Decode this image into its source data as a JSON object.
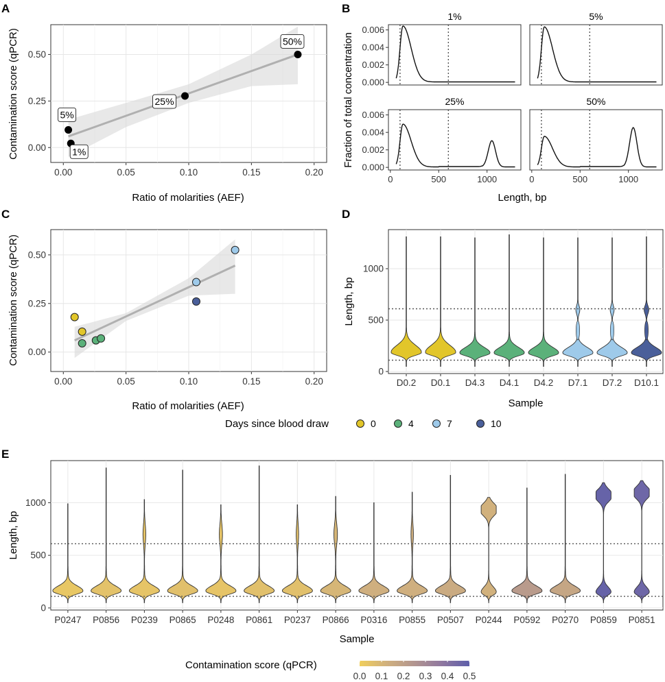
{
  "panels": {
    "A": {
      "label": "A",
      "chart_data": {
        "type": "scatter",
        "xlabel": "Ratio of molarities (AEF)",
        "ylabel": "Contamination score (qPCR)",
        "xlim": [
          -0.01,
          0.21
        ],
        "ylim": [
          -0.08,
          0.66
        ],
        "xticks": [
          0,
          0.05,
          0.1,
          0.15,
          0.2
        ],
        "xtick_labels": [
          "0.00",
          "0.05",
          "0.10",
          "0.15",
          "0.20"
        ],
        "yticks": [
          0,
          0.25,
          0.5
        ],
        "ytick_labels": [
          "0.00",
          "0.25",
          "0.50"
        ],
        "points": [
          {
            "x": 0.004,
            "y": 0.095,
            "label": "5%"
          },
          {
            "x": 0.006,
            "y": 0.022,
            "label": "1%"
          },
          {
            "x": 0.097,
            "y": 0.277,
            "label": "25%"
          },
          {
            "x": 0.187,
            "y": 0.5,
            "label": "50%"
          }
        ],
        "fit": {
          "x0": 0.004,
          "y0": 0.06,
          "x1": 0.187,
          "y1": 0.5
        },
        "band": {
          "upper": [
            [
              0.004,
              0.15
            ],
            [
              0.05,
              0.24
            ],
            [
              0.1,
              0.34
            ],
            [
              0.15,
              0.5
            ],
            [
              0.187,
              0.65
            ]
          ],
          "lower": [
            [
              0.187,
              0.34
            ],
            [
              0.15,
              0.33
            ],
            [
              0.1,
              0.24
            ],
            [
              0.05,
              0.11
            ],
            [
              0.004,
              -0.05
            ]
          ]
        }
      }
    },
    "B": {
      "label": "B",
      "chart_data": {
        "type": "line",
        "xlabel": "Length, bp",
        "ylabel": "Fraction of total concentration",
        "xlim": [
          -20,
          1350
        ],
        "ylim": [
          -0.0003,
          0.0066
        ],
        "xticks": [
          0,
          500,
          1000
        ],
        "xtick_labels": [
          "0",
          "500",
          "1000"
        ],
        "yticks": [
          0,
          0.002,
          0.004,
          0.006
        ],
        "ytick_labels": [
          "0.000",
          "0.002",
          "0.004",
          "0.006"
        ],
        "vlines": [
          100,
          600
        ],
        "facets": [
          {
            "title": "1%",
            "peak1": 0.0064,
            "peak2": 0
          },
          {
            "title": "5%",
            "peak1": 0.0063,
            "peak2": 0
          },
          {
            "title": "25%",
            "peak1": 0.0049,
            "peak2": 0.003
          },
          {
            "title": "50%",
            "peak1": 0.0035,
            "peak2": 0.0045
          }
        ]
      }
    },
    "C": {
      "label": "C",
      "chart_data": {
        "type": "scatter",
        "xlabel": "Ratio of molarities (AEF)",
        "ylabel": "Contamination score (qPCR)",
        "xlim": [
          -0.01,
          0.21
        ],
        "ylim": [
          -0.1,
          0.63
        ],
        "xticks": [
          0,
          0.05,
          0.1,
          0.15,
          0.2
        ],
        "xtick_labels": [
          "0.00",
          "0.05",
          "0.10",
          "0.15",
          "0.20"
        ],
        "yticks": [
          0,
          0.25,
          0.5
        ],
        "ytick_labels": [
          "0.00",
          "0.25",
          "0.50"
        ],
        "points": [
          {
            "x": 0.009,
            "y": 0.18,
            "day": 0
          },
          {
            "x": 0.015,
            "y": 0.105,
            "day": 0
          },
          {
            "x": 0.015,
            "y": 0.045,
            "day": 4
          },
          {
            "x": 0.026,
            "y": 0.06,
            "day": 4
          },
          {
            "x": 0.03,
            "y": 0.07,
            "day": 4
          },
          {
            "x": 0.106,
            "y": 0.36,
            "day": 7
          },
          {
            "x": 0.137,
            "y": 0.525,
            "day": 7
          },
          {
            "x": 0.106,
            "y": 0.26,
            "day": 10
          }
        ],
        "fit": {
          "x0": 0.009,
          "y0": 0.06,
          "x1": 0.137,
          "y1": 0.445
        },
        "band": {
          "upper": [
            [
              0.009,
              0.13
            ],
            [
              0.05,
              0.2
            ],
            [
              0.1,
              0.38
            ],
            [
              0.137,
              0.58
            ]
          ],
          "lower": [
            [
              0.137,
              0.3
            ],
            [
              0.1,
              0.29
            ],
            [
              0.05,
              0.16
            ],
            [
              0.009,
              -0.03
            ]
          ]
        }
      }
    },
    "D": {
      "label": "D",
      "chart_data": {
        "type": "violin",
        "xlabel": "Sample",
        "ylabel": "Length, bp",
        "ylim": [
          -20,
          1380
        ],
        "yticks": [
          0,
          500,
          1000
        ],
        "ytick_labels": [
          "0",
          "500",
          "1000"
        ],
        "hlines": [
          110,
          610
        ],
        "categories": [
          "D0.2",
          "D0.1",
          "D4.3",
          "D4.1",
          "D4.2",
          "D7.1",
          "D7.2",
          "D10.1"
        ],
        "days": [
          0,
          0,
          4,
          4,
          4,
          7,
          7,
          10
        ],
        "max_length": [
          1310,
          1310,
          1300,
          1330,
          1300,
          1300,
          1300,
          1310
        ],
        "second_mode": [
          0,
          0,
          0,
          0,
          0,
          0.5,
          0.5,
          0.6
        ]
      }
    },
    "legend_days": {
      "title": "Days since blood draw",
      "items": [
        {
          "label": "0",
          "color": "#E2C62A"
        },
        {
          "label": "4",
          "color": "#5BB17A"
        },
        {
          "label": "7",
          "color": "#9ECAEA"
        },
        {
          "label": "10",
          "color": "#4A5F9A"
        }
      ]
    },
    "E": {
      "label": "E",
      "chart_data": {
        "type": "violin",
        "xlabel": "Sample",
        "ylabel": "Length, bp",
        "ylim": [
          -20,
          1400
        ],
        "yticks": [
          0,
          500,
          1000
        ],
        "ytick_labels": [
          "0",
          "500",
          "1000"
        ],
        "hlines": [
          110,
          610
        ],
        "categories": [
          "P0247",
          "P0856",
          "P0239",
          "P0865",
          "P0248",
          "P0861",
          "P0237",
          "P0866",
          "P0316",
          "P0855",
          "P0507",
          "P0244",
          "P0592",
          "P0270",
          "P0859",
          "P0851"
        ],
        "contamination_score": [
          0.03,
          0.05,
          0.04,
          0.06,
          0.04,
          0.06,
          0.06,
          0.1,
          0.13,
          0.13,
          0.15,
          0.12,
          0.22,
          0.17,
          0.48,
          0.46
        ],
        "max_length": [
          990,
          1335,
          1035,
          1310,
          980,
          1350,
          980,
          1065,
          1000,
          1105,
          1260,
          1055,
          1140,
          1275,
          1190,
          1215
        ],
        "upper_mode": [
          0,
          0,
          0.35,
          0,
          0.4,
          0,
          0.3,
          0.45,
          0,
          0.3,
          0,
          0.9,
          0,
          0,
          1.0,
          1.0
        ]
      }
    },
    "legend_score": {
      "title": "Contamination score (qPCR)",
      "tick_labels": [
        "0.0",
        "0.1",
        "0.2",
        "0.3",
        "0.4",
        "0.5"
      ],
      "colors": [
        "#F0CE5C",
        "#D0B07E",
        "#B29590",
        "#8F77A0",
        "#5E5FAA"
      ]
    }
  }
}
